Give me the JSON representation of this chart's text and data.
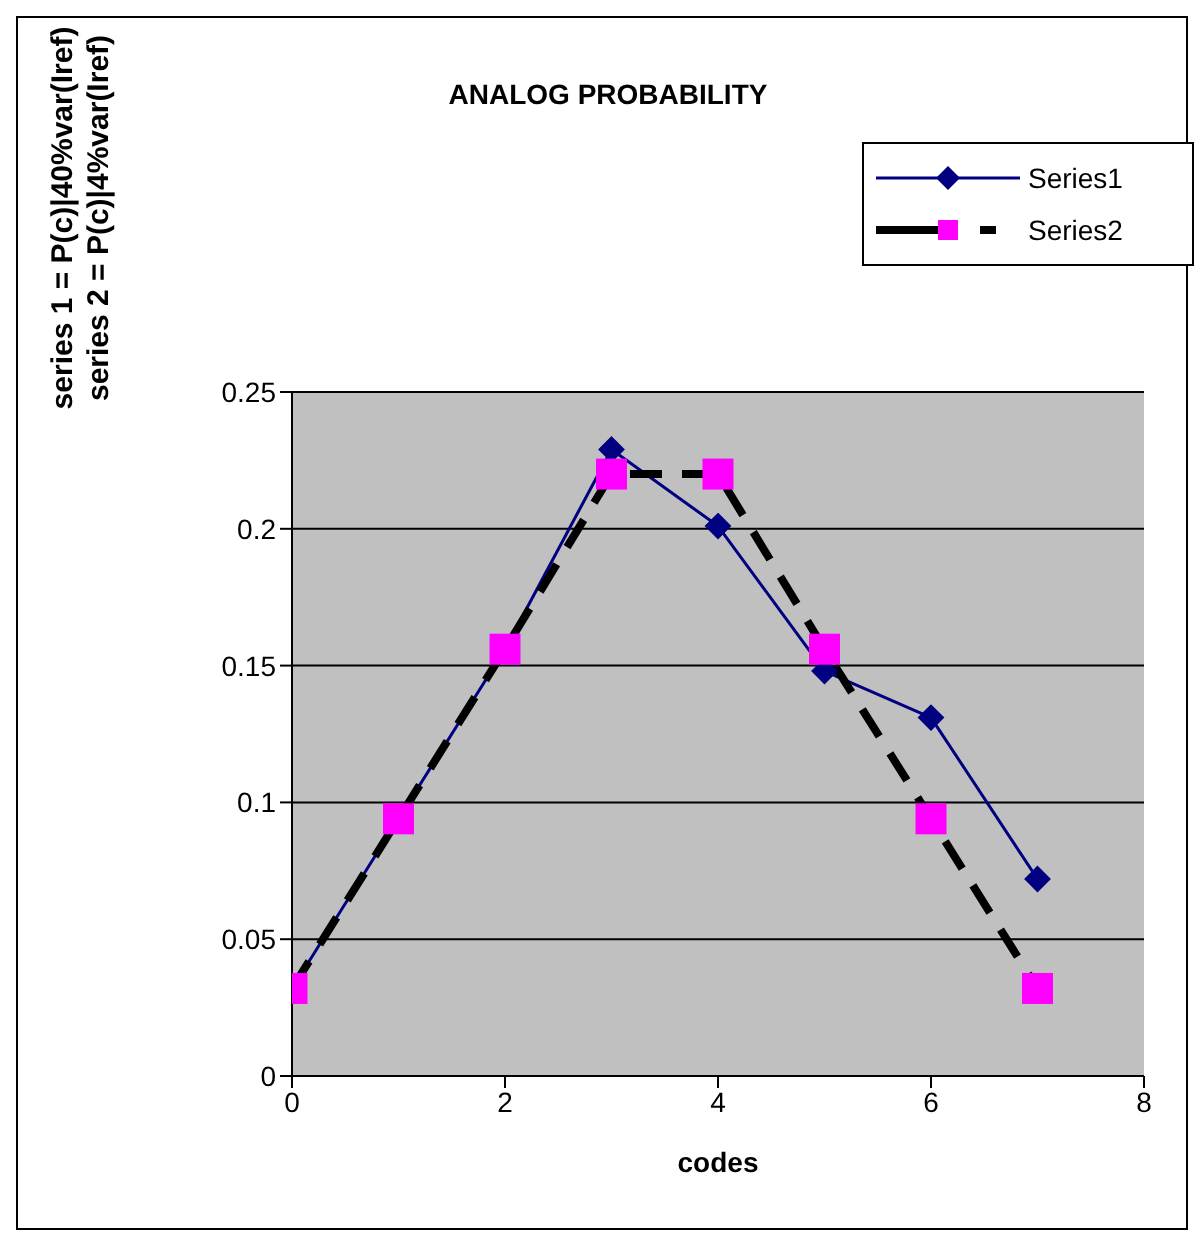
{
  "chart_data": {
    "type": "line",
    "title": "ANALOG PROBABILITY",
    "xlabel": "codes",
    "ylabel": "series 1 = P(c)|40%var(Iref)\nseries 2 = P(c)|4%var(Iref)",
    "x": [
      0,
      1,
      2,
      3,
      4,
      5,
      6,
      7
    ],
    "series": [
      {
        "name": "Series1",
        "color": "#000080",
        "marker": "diamond",
        "line_style": "solid",
        "values": [
          0.032,
          0.094,
          0.156,
          0.229,
          0.201,
          0.148,
          0.131,
          0.072
        ]
      },
      {
        "name": "Series2",
        "color": "#000000",
        "colors": [
          "#ff00ff",
          "#ff00ff",
          "#ff00ff",
          "#ff00ff",
          "#ff00ff",
          "#ff00ff",
          "#ff00ff",
          "#ff00ff"
        ],
        "marker": "square",
        "line_style": "dashed",
        "values": [
          0.032,
          0.094,
          0.156,
          0.22,
          0.22,
          0.156,
          0.094,
          0.032
        ]
      }
    ],
    "xlim": [
      0,
      8
    ],
    "xticks": [
      0,
      2,
      4,
      6,
      8
    ],
    "ylim": [
      0,
      0.25
    ],
    "yticks": [
      0,
      0.05,
      0.1,
      0.15,
      0.2,
      0.25
    ],
    "grid": "y",
    "legend": "top right"
  }
}
